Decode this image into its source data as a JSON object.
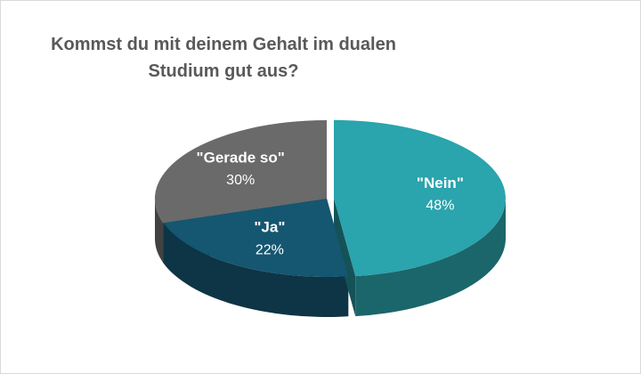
{
  "chart_data": {
    "type": "pie3d",
    "title": "Kommst du mit deinem Gehalt im dualen Studium gut aus?",
    "categories": [
      "\"Nein\"",
      "\"Ja\"",
      "\"Gerade so\""
    ],
    "values": [
      48,
      22,
      30
    ],
    "value_labels": [
      "48%",
      "22%",
      "30%"
    ],
    "colors": [
      "#2aa4ad",
      "#155670",
      "#6a6a6a"
    ]
  }
}
